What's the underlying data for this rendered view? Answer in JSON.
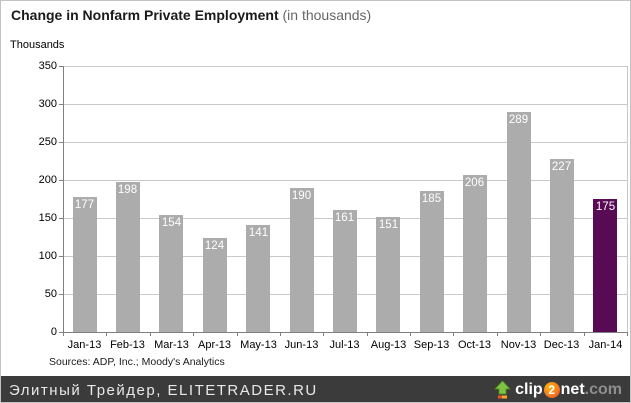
{
  "header": {
    "title": "Change in Nonfarm Private Employment",
    "subtitle": " (in thousands)"
  },
  "chart_data": {
    "type": "bar",
    "title": "Change in Nonfarm Private Employment (in thousands)",
    "units_label": "Thousands",
    "categories": [
      "Jan-13",
      "Feb-13",
      "Mar-13",
      "Apr-13",
      "May-13",
      "Jun-13",
      "Jul-13",
      "Aug-13",
      "Sep-13",
      "Oct-13",
      "Nov-13",
      "Dec-13",
      "Jan-14"
    ],
    "values": [
      177,
      198,
      154,
      124,
      141,
      190,
      161,
      151,
      185,
      206,
      289,
      227,
      175
    ],
    "value_labels_shown": true,
    "xlabel": "",
    "ylabel": "Thousands",
    "ylim": [
      0,
      350
    ],
    "ytick_step": 50,
    "grid": true,
    "legend": "none",
    "bar_color_default": "#acacac",
    "bar_color_highlight": "#580a54",
    "highlight_index": 12,
    "sources_note": "Sources: ADP, Inc.; Moody's Analytics"
  },
  "banner": {
    "text": "Элитный Трейдер, ELITETRADER.RU",
    "bg_color": "#3b3b3b",
    "logo": {
      "icon": "green-up-arrow",
      "part_clip": "clip",
      "part_two": "2",
      "part_net": "net",
      "part_dotcom": ".com"
    }
  }
}
